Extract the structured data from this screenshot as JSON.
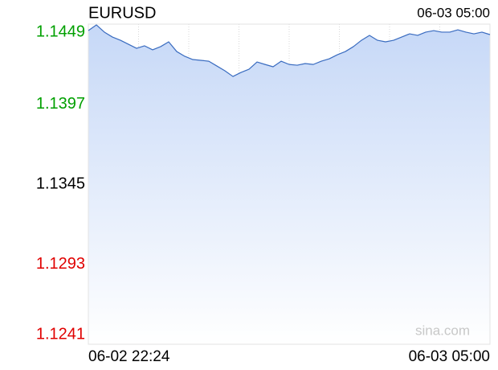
{
  "chart_data": {
    "type": "line",
    "title": "EURUSD",
    "timestamp": "06-03 05:00",
    "watermark": "sina.com",
    "categories": [
      "06-02 22:24",
      null,
      null,
      null,
      null,
      null,
      null,
      null,
      null,
      null,
      null,
      null,
      null,
      null,
      null,
      null,
      null,
      null,
      null,
      null,
      null,
      null,
      null,
      null,
      null,
      null,
      null,
      null,
      null,
      null,
      null,
      null,
      null,
      null,
      null,
      null,
      null,
      null,
      null,
      null,
      null,
      null,
      null,
      null,
      null,
      null,
      null,
      null,
      null,
      null,
      "06-03 05:00"
    ],
    "series": [
      {
        "name": "EURUSD",
        "color": "#3a6cc0",
        "values": [
          1.14448,
          1.14485,
          1.14438,
          1.14406,
          1.14385,
          1.14359,
          1.14333,
          1.14349,
          1.14323,
          1.14344,
          1.14375,
          1.14312,
          1.14281,
          1.1426,
          1.14255,
          1.14249,
          1.14218,
          1.14187,
          1.1415,
          1.14176,
          1.14197,
          1.14244,
          1.14228,
          1.14213,
          1.14249,
          1.14228,
          1.14223,
          1.14234,
          1.14228,
          1.14249,
          1.14265,
          1.14291,
          1.14312,
          1.14344,
          1.14385,
          1.14417,
          1.14385,
          1.14375,
          1.14385,
          1.14406,
          1.14427,
          1.14417,
          1.14438,
          1.14448,
          1.14438,
          1.14438,
          1.14453,
          1.14438,
          1.14427,
          1.14438,
          1.14422
        ]
      }
    ],
    "ylim": [
      1.1241,
      1.1449
    ],
    "yticks": [
      1.1449,
      1.1397,
      1.1345,
      1.1293,
      1.1241
    ],
    "ytick_colors": [
      "#00a000",
      "#00a000",
      "#000000",
      "#e00000",
      "#e00000"
    ],
    "area_fill": true,
    "grid": true
  }
}
